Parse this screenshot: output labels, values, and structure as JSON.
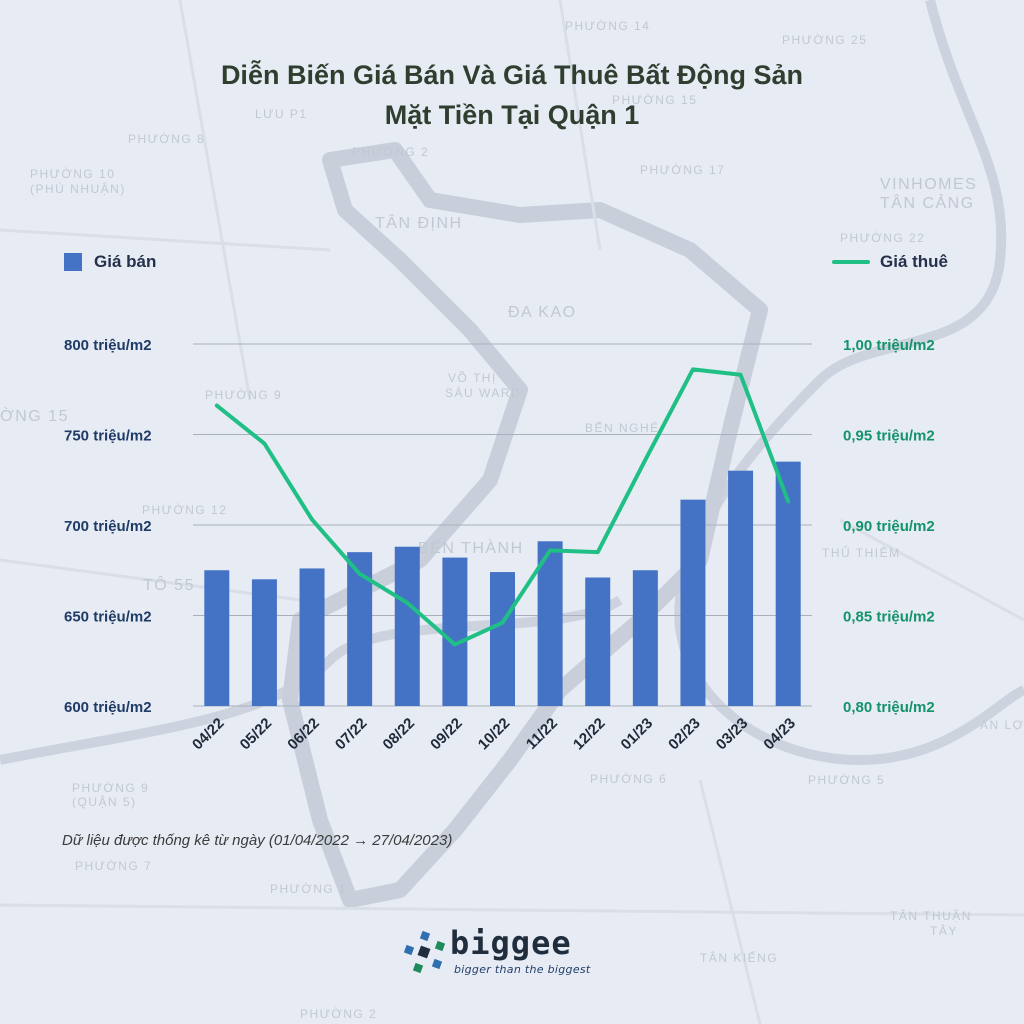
{
  "title_line1": "Diễn Biến Giá Bán Và Giá Thuê Bất Động Sản",
  "title_line2": "Mặt Tiền Tại Quận 1",
  "note": "Dữ liệu được thống kê từ ngày (01/04/2022 → 27/04/2023)",
  "logo": {
    "name": "biggee",
    "tagline": "bigger than the biggest"
  },
  "colors": {
    "bar": "#4472c4",
    "line": "#1fbf85",
    "left_axis_text": "#1f3b66",
    "right_axis_text": "#13936a",
    "title": "#2f3e2f"
  },
  "background_map_labels": [
    "PHƯỜNG 14",
    "PHƯỜNG 25",
    "LƯU P1",
    "PHƯỜNG 15",
    "PHƯỜNG 8",
    "PHƯỜNG 2",
    "PHƯỜNG 10",
    "(PHÚ NHUẬN)",
    "PHƯỜNG 17",
    "VINHOMES",
    "TÂN CẢNG",
    "TÂN ĐỊNH",
    "PHƯỜNG 22",
    "ĐA KAO",
    "VÕ THỊ",
    "SÁU WARD",
    "PHƯỜNG 9",
    "BẾN NGHÉ",
    "BẾN THÀNH",
    "PHƯỜNG 12",
    "THỦ THIÊM",
    "PHƯỜNG 6",
    "PHƯỜNG 9",
    "(QUẬN 5)",
    "PHƯỜNG 7",
    "PHƯỜNG 1",
    "TÂN THUẬN",
    "TÂY",
    "TÂN KIỂNG",
    "PHƯỜNG 2",
    "AN LỢI Đ",
    "PHƯỜNG 5",
    "ỜNG 15",
    "TÔ 55"
  ],
  "chart_data": {
    "type": "bar+line",
    "title": "Diễn Biến Giá Bán Và Giá Thuê Bất Động Sản Mặt Tiền Tại Quận 1",
    "categories": [
      "04/22",
      "05/22",
      "06/22",
      "07/22",
      "08/22",
      "09/22",
      "10/22",
      "11/22",
      "12/22",
      "01/23",
      "02/23",
      "03/23",
      "04/23"
    ],
    "series": [
      {
        "name": "Giá bán",
        "type": "bar",
        "axis": "left",
        "values": [
          675,
          670,
          676,
          685,
          688,
          682,
          674,
          691,
          671,
          675,
          714,
          730,
          735
        ]
      },
      {
        "name": "Giá thuê",
        "type": "line",
        "axis": "right",
        "values": [
          0.966,
          0.945,
          0.903,
          0.873,
          0.857,
          0.834,
          0.846,
          0.886,
          0.885,
          0.936,
          0.986,
          0.983,
          0.913
        ]
      }
    ],
    "left_axis": {
      "ylim": [
        600,
        800
      ],
      "ticks": [
        600,
        650,
        700,
        750,
        800
      ],
      "tick_labels": [
        "600 triệu/m2",
        "650 triệu/m2",
        "700 triệu/m2",
        "750 triệu/m2",
        "800 triệu/m2"
      ]
    },
    "right_axis": {
      "ylim": [
        0.8,
        1.0
      ],
      "ticks": [
        0.8,
        0.85,
        0.9,
        0.95,
        1.0
      ],
      "tick_labels": [
        "0,80 triệu/m2",
        "0,85 triệu/m2",
        "0,90 triệu/m2",
        "0,95 triệu/m2",
        "1,00 triệu/m2"
      ]
    },
    "grid": true,
    "legend": [
      "top-left: Giá bán",
      "top-right: Giá thuê"
    ]
  }
}
